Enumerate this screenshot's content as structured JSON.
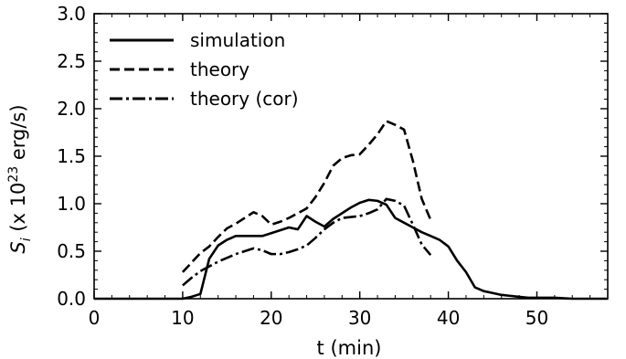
{
  "chart_data": {
    "type": "line",
    "xlabel": "t (min)",
    "ylabel_main": "S",
    "ylabel_sub": "i",
    "ylabel_rest": " (x 10",
    "ylabel_sup": "23",
    "ylabel_end": " erg/s)",
    "xlim": [
      0,
      58
    ],
    "ylim": [
      0.0,
      3.0
    ],
    "xticks": [
      0,
      10,
      20,
      30,
      40,
      50
    ],
    "yticks": [
      0.0,
      0.5,
      1.0,
      1.5,
      2.0,
      2.5,
      3.0
    ],
    "xtick_labels": [
      "0",
      "10",
      "20",
      "30",
      "40",
      "50"
    ],
    "ytick_labels": [
      "0.0",
      "0.5",
      "1.0",
      "1.5",
      "2.0",
      "2.5",
      "3.0"
    ],
    "x_minor_step": 2,
    "y_minor_step": 0.1,
    "grid": false,
    "legend_position": "top-left",
    "series": [
      {
        "name": "simulation",
        "dash": "solid",
        "x": [
          0,
          5,
          10,
          11,
          12,
          13,
          14,
          15,
          16,
          17,
          18,
          19,
          20,
          21,
          22,
          23,
          24,
          25,
          26,
          27,
          28,
          29,
          30,
          31,
          32,
          33,
          34,
          35,
          36,
          37,
          38,
          39,
          40,
          41,
          42,
          43,
          44,
          45,
          46,
          47,
          48,
          49,
          50,
          52,
          54,
          56,
          58
        ],
        "y": [
          0.0,
          0.0,
          0.0,
          0.02,
          0.05,
          0.42,
          0.56,
          0.62,
          0.66,
          0.66,
          0.66,
          0.66,
          0.69,
          0.72,
          0.75,
          0.73,
          0.87,
          0.81,
          0.76,
          0.84,
          0.9,
          0.96,
          1.01,
          1.04,
          1.03,
          0.99,
          0.85,
          0.8,
          0.75,
          0.7,
          0.66,
          0.62,
          0.55,
          0.4,
          0.28,
          0.12,
          0.08,
          0.06,
          0.04,
          0.03,
          0.02,
          0.01,
          0.01,
          0.01,
          0.0,
          0.0,
          0.0
        ]
      },
      {
        "name": "theory",
        "dash": "dashed",
        "x": [
          10,
          11,
          12,
          13,
          14,
          15,
          16,
          17,
          18,
          19,
          20,
          21,
          22,
          23,
          24,
          25,
          26,
          27,
          28,
          29,
          30,
          31,
          32,
          33,
          34,
          35,
          36,
          37,
          38
        ],
        "y": [
          0.28,
          0.38,
          0.48,
          0.55,
          0.65,
          0.74,
          0.79,
          0.85,
          0.91,
          0.87,
          0.78,
          0.81,
          0.85,
          0.9,
          0.95,
          1.07,
          1.22,
          1.4,
          1.48,
          1.51,
          1.52,
          1.62,
          1.73,
          1.87,
          1.83,
          1.78,
          1.45,
          1.05,
          0.83
        ]
      },
      {
        "name": "theory (cor)",
        "dash": "dashdot",
        "x": [
          10,
          11,
          12,
          13,
          14,
          15,
          16,
          17,
          18,
          19,
          20,
          21,
          22,
          23,
          24,
          25,
          26,
          27,
          28,
          29,
          30,
          31,
          32,
          33,
          34,
          35,
          36,
          37,
          38
        ],
        "y": [
          0.14,
          0.22,
          0.29,
          0.34,
          0.39,
          0.43,
          0.47,
          0.5,
          0.53,
          0.51,
          0.47,
          0.47,
          0.49,
          0.52,
          0.56,
          0.64,
          0.73,
          0.8,
          0.85,
          0.86,
          0.87,
          0.9,
          0.94,
          1.05,
          1.03,
          0.98,
          0.78,
          0.57,
          0.46
        ]
      }
    ]
  }
}
